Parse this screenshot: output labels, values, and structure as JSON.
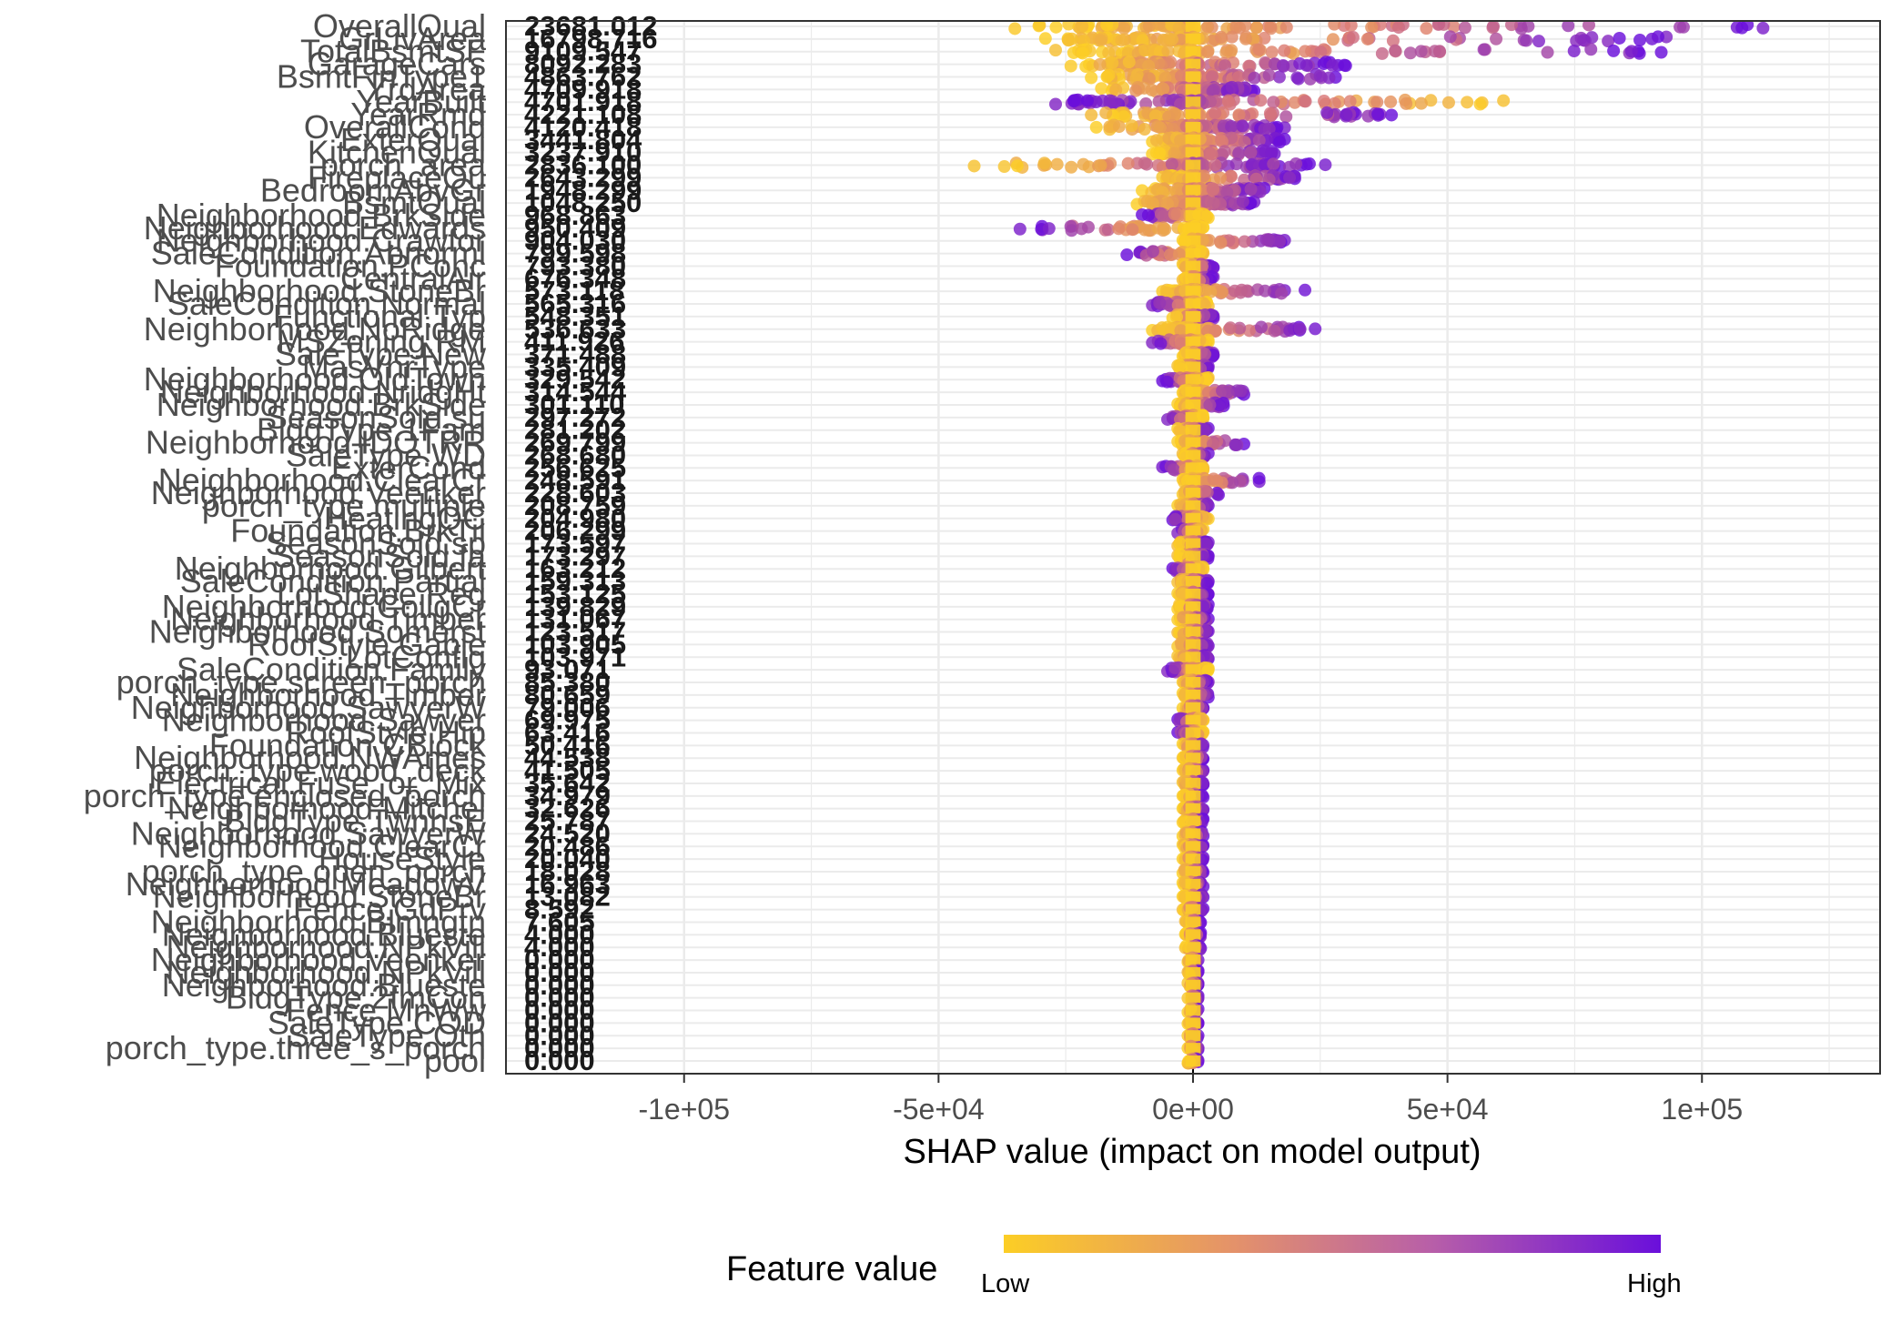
{
  "colors": {
    "low": "#fcce25",
    "mid": "#db7a76",
    "high": "#6a0fdb",
    "grid": "#ebebeb",
    "zero_line": "#000000"
  },
  "chart_data": {
    "type": "scatter",
    "subtype": "shap-summary-beeswarm",
    "title": "",
    "xlabel": "SHAP value (impact on model output)",
    "ylabel": "",
    "xlim": [
      -135000,
      135000
    ],
    "x_ticks": [
      -100000,
      -50000,
      0,
      50000,
      100000
    ],
    "x_tick_labels": [
      "-1e+05",
      "-5e+04",
      "0e+00",
      "5e+04",
      "1e+05"
    ],
    "grid": true,
    "legend": {
      "title": "Feature value",
      "low_label": "Low",
      "high_label": "High",
      "placement": "bottom"
    },
    "features": [
      {
        "name": "OverallQual",
        "mean_abs": "23681.012",
        "lo": -35000,
        "hi": 112000,
        "skew": "pos"
      },
      {
        "name": "GrLivArea",
        "mean_abs": "16798.716",
        "lo": -29000,
        "hi": 93000,
        "skew": "pos"
      },
      {
        "name": "TotalBsmtSF",
        "mean_abs": "9109.547",
        "lo": -27000,
        "hi": 92000,
        "skew": "pos"
      },
      {
        "name": "GarageCars",
        "mean_abs": "8092.283",
        "lo": -24000,
        "hi": 30000,
        "skew": "pos"
      },
      {
        "name": "BsmtFinType1",
        "mean_abs": "4863.762",
        "lo": -20000,
        "hi": 28000,
        "skew": "pos"
      },
      {
        "name": "YrdArea",
        "mean_abs": "4709.918",
        "lo": -18000,
        "hi": 12000,
        "skew": "pos"
      },
      {
        "name": "YearBuilt",
        "mean_abs": "4701.918",
        "lo": -27000,
        "hi": 61000,
        "skew": "neg"
      },
      {
        "name": "YearRmd",
        "mean_abs": "4221.108",
        "lo": -20000,
        "hi": 39000,
        "skew": "pos"
      },
      {
        "name": "OverallCond",
        "mean_abs": "4120.418",
        "lo": -19000,
        "hi": 18000,
        "skew": "pos"
      },
      {
        "name": "ExterQual",
        "mean_abs": "3441.804",
        "lo": -8000,
        "hi": 18000,
        "skew": "pos"
      },
      {
        "name": "KitchenQual",
        "mean_abs": "3237.910",
        "lo": -8000,
        "hi": 16000,
        "skew": "pos"
      },
      {
        "name": "porch_area",
        "mean_abs": "2836.100",
        "lo": -43000,
        "hi": 26000,
        "skew": "pos"
      },
      {
        "name": "FireplaceQu",
        "mean_abs": "2643.299",
        "lo": -6000,
        "hi": 20000,
        "skew": "pos"
      },
      {
        "name": "BedroomAbvGr",
        "mean_abs": "1948.299",
        "lo": -10000,
        "hi": 14000,
        "skew": "pos"
      },
      {
        "name": "BsmtQual",
        "mean_abs": "1048.250",
        "lo": -11000,
        "hi": 12000,
        "skew": "pos"
      },
      {
        "name": "Neighborhood.BrkSide",
        "mean_abs": "968.863",
        "lo": -10000,
        "hi": 3000,
        "skew": "neg"
      },
      {
        "name": "Neighborhood.Edwards",
        "mean_abs": "950.409",
        "lo": -34000,
        "hi": 2000,
        "skew": "neg"
      },
      {
        "name": "Neighborhood.Crawfor",
        "mean_abs": "904.030",
        "lo": -2000,
        "hi": 18000,
        "skew": "pos"
      },
      {
        "name": "SaleCondition.Abnorml",
        "mean_abs": "799.598",
        "lo": -13000,
        "hi": 2000,
        "skew": "neg"
      },
      {
        "name": "Foundation.PConc",
        "mean_abs": "793.380",
        "lo": -2000,
        "hi": 4000,
        "skew": "pos"
      },
      {
        "name": "CentralAir",
        "mean_abs": "676.348",
        "lo": -2000,
        "hi": 4000,
        "skew": "pos"
      },
      {
        "name": "Neighborhood.StoneBr",
        "mean_abs": "573.118",
        "lo": -6000,
        "hi": 22000,
        "skew": "pos"
      },
      {
        "name": "SaleCondition.Normal",
        "mean_abs": "565.316",
        "lo": -8000,
        "hi": 3000,
        "skew": "neg"
      },
      {
        "name": "Functional.Typ",
        "mean_abs": "548.351",
        "lo": -4000,
        "hi": 4000,
        "skew": "pos"
      },
      {
        "name": "Neighborhood.NoRidge",
        "mean_abs": "536.633",
        "lo": -8000,
        "hi": 24000,
        "skew": "pos"
      },
      {
        "name": "MSZoning.RM",
        "mean_abs": "411.926",
        "lo": -8000,
        "hi": 3000,
        "skew": "neg"
      },
      {
        "name": "SaleType.New",
        "mean_abs": "371.488",
        "lo": -2000,
        "hi": 4000,
        "skew": "pos"
      },
      {
        "name": "MasVnrType",
        "mean_abs": "335.409",
        "lo": -3000,
        "hi": 3000,
        "skew": "pos"
      },
      {
        "name": "Neighborhood.OldTown",
        "mean_abs": "329.542",
        "lo": -6000,
        "hi": 3000,
        "skew": "neg"
      },
      {
        "name": "Neighborhood.NridgHt",
        "mean_abs": "314.544",
        "lo": -2000,
        "hi": 10000,
        "skew": "pos"
      },
      {
        "name": "Neighborhood.BrkSide",
        "mean_abs": "301.110",
        "lo": -3000,
        "hi": 6000,
        "skew": "pos"
      },
      {
        "name": "SeasonSold.su",
        "mean_abs": "297.272",
        "lo": -5000,
        "hi": 2000,
        "skew": "neg"
      },
      {
        "name": "BldgType.1Fam",
        "mean_abs": "281.202",
        "lo": -3000,
        "hi": 3000,
        "skew": "pos"
      },
      {
        "name": "Neighborhood.IDOTRR",
        "mean_abs": "269.799",
        "lo": -3000,
        "hi": 10000,
        "skew": "pos"
      },
      {
        "name": "SaleType.WD",
        "mean_abs": "268.680",
        "lo": -2000,
        "hi": 3000,
        "skew": "pos"
      },
      {
        "name": "ExterCond",
        "mean_abs": "256.625",
        "lo": -6000,
        "hi": 2000,
        "skew": "neg"
      },
      {
        "name": "Neighborhood.ClearCr",
        "mean_abs": "248.591",
        "lo": -2000,
        "hi": 13000,
        "skew": "pos"
      },
      {
        "name": "Neighborhood.Veenker",
        "mean_abs": "228.603",
        "lo": -2000,
        "hi": 5000,
        "skew": "pos"
      },
      {
        "name": "porch_type.multiple",
        "mean_abs": "208.759",
        "lo": -3000,
        "hi": 3000,
        "skew": "pos"
      },
      {
        "name": "HeatingQC",
        "mean_abs": "204.980",
        "lo": -4000,
        "hi": 3000,
        "skew": "neg"
      },
      {
        "name": "Foundation.BrkTil",
        "mean_abs": "206.299",
        "lo": -3000,
        "hi": 2000,
        "skew": "neg"
      },
      {
        "name": "SeasonSold.sp",
        "mean_abs": "173.597",
        "lo": -3000,
        "hi": 3000,
        "skew": "pos"
      },
      {
        "name": "SeasonSold.fa",
        "mean_abs": "173.297",
        "lo": -3000,
        "hi": 3000,
        "skew": "pos"
      },
      {
        "name": "Neighborhood.Gilbert",
        "mean_abs": "163.212",
        "lo": -4000,
        "hi": 2000,
        "skew": "neg"
      },
      {
        "name": "SaleCondition.Partial",
        "mean_abs": "159.313",
        "lo": -3000,
        "hi": 3000,
        "skew": "pos"
      },
      {
        "name": "LotShape.Reg",
        "mean_abs": "153.125",
        "lo": -3000,
        "hi": 3000,
        "skew": "pos"
      },
      {
        "name": "Neighborhood.CollgCr",
        "mean_abs": "139.829",
        "lo": -3000,
        "hi": 3000,
        "skew": "pos"
      },
      {
        "name": "Neighborhood.Timber",
        "mean_abs": "131.067",
        "lo": -3000,
        "hi": 3000,
        "skew": "pos"
      },
      {
        "name": "Neighborhood.Somerst",
        "mean_abs": "123.517",
        "lo": -3000,
        "hi": 3000,
        "skew": "pos"
      },
      {
        "name": "RoofStyle.Gable",
        "mean_abs": "103.905",
        "lo": -3000,
        "hi": 3000,
        "skew": "pos"
      },
      {
        "name": "LotConfig",
        "mean_abs": "103.971",
        "lo": -3000,
        "hi": 3000,
        "skew": "pos"
      },
      {
        "name": "SaleCondition.Family",
        "mean_abs": "93.071",
        "lo": -5000,
        "hi": 3000,
        "skew": "neg"
      },
      {
        "name": "porch_type.screen_porch",
        "mean_abs": "85.380",
        "lo": -2000,
        "hi": 3000,
        "skew": "pos"
      },
      {
        "name": "Neighborhood.Timber",
        "mean_abs": "80.659",
        "lo": -2000,
        "hi": 3000,
        "skew": "pos"
      },
      {
        "name": "Neighborhood.SawyerW",
        "mean_abs": "79.006",
        "lo": -2000,
        "hi": 2000,
        "skew": "pos"
      },
      {
        "name": "Neighborhood.Sawyer",
        "mean_abs": "69.975",
        "lo": -3000,
        "hi": 2000,
        "skew": "neg"
      },
      {
        "name": "RoofStyle.Hip",
        "mean_abs": "63.416",
        "lo": -3000,
        "hi": 2000,
        "skew": "neg"
      },
      {
        "name": "Foundation.CBlock",
        "mean_abs": "50.416",
        "lo": -2000,
        "hi": 2000,
        "skew": "pos"
      },
      {
        "name": "Neighborhood.NWAmes",
        "mean_abs": "44.538",
        "lo": -2000,
        "hi": 2000,
        "skew": "pos"
      },
      {
        "name": "porch_type.wood_deck",
        "mean_abs": "41.505",
        "lo": -2000,
        "hi": 2000,
        "skew": "pos"
      },
      {
        "name": "Electrical.Fuse_or_Mix",
        "mean_abs": "35.642",
        "lo": -2000,
        "hi": 2000,
        "skew": "pos"
      },
      {
        "name": "porch_type.enclosed_porch",
        "mean_abs": "34.979",
        "lo": -2000,
        "hi": 2000,
        "skew": "pos"
      },
      {
        "name": "Neighborhood.Mitchel",
        "mean_abs": "32.626",
        "lo": -2000,
        "hi": 2000,
        "skew": "pos"
      },
      {
        "name": "BldgType.TwnhsE",
        "mean_abs": "25.787",
        "lo": -2000,
        "hi": 2000,
        "skew": "pos"
      },
      {
        "name": "Neighborhood.SawyerW",
        "mean_abs": "24.520",
        "lo": -2000,
        "hi": 2000,
        "skew": "pos"
      },
      {
        "name": "Neighborhood.ClearCr",
        "mean_abs": "20.486",
        "lo": -2000,
        "hi": 2000,
        "skew": "pos"
      },
      {
        "name": "HouseStyle",
        "mean_abs": "20.040",
        "lo": -2000,
        "hi": 2000,
        "skew": "pos"
      },
      {
        "name": "porch_type.open_porch",
        "mean_abs": "18.028",
        "lo": -2000,
        "hi": 2000,
        "skew": "pos"
      },
      {
        "name": "Neighborhood.MeadowV",
        "mean_abs": "16.963",
        "lo": -2000,
        "hi": 2000,
        "skew": "pos"
      },
      {
        "name": "Neighborhood.StoneBr",
        "mean_abs": "13.082",
        "lo": -2000,
        "hi": 2000,
        "skew": "pos"
      },
      {
        "name": "Fence.GdPrv",
        "mean_abs": "8.592",
        "lo": -2000,
        "hi": 2000,
        "skew": "pos"
      },
      {
        "name": "Neighborhood.Blmngtn",
        "mean_abs": "7.605",
        "lo": -1500,
        "hi": 1500,
        "skew": "pos"
      },
      {
        "name": "Neighborhood.Blueste",
        "mean_abs": "4.000",
        "lo": -1500,
        "hi": 1500,
        "skew": "pos"
      },
      {
        "name": "Neighborhood.NPkVill",
        "mean_abs": "4.000",
        "lo": -1500,
        "hi": 1500,
        "skew": "pos"
      },
      {
        "name": "Neighborhood.Veenker",
        "mean_abs": "0.000",
        "lo": -1000,
        "hi": 1000,
        "skew": "pos"
      },
      {
        "name": "Neighborhood.NPkVill",
        "mean_abs": "0.000",
        "lo": -1000,
        "hi": 1000,
        "skew": "pos"
      },
      {
        "name": "Neighborhood.Blueste",
        "mean_abs": "0.000",
        "lo": -1000,
        "hi": 1000,
        "skew": "pos"
      },
      {
        "name": "BldgType.2fmCon",
        "mean_abs": "0.000",
        "lo": -1000,
        "hi": 1000,
        "skew": "pos"
      },
      {
        "name": "Fence.MnWw",
        "mean_abs": "0.000",
        "lo": -1000,
        "hi": 1000,
        "skew": "pos"
      },
      {
        "name": "SaleType.COD",
        "mean_abs": "0.000",
        "lo": -1000,
        "hi": 1000,
        "skew": "pos"
      },
      {
        "name": "SaleType.Oth",
        "mean_abs": "0.000",
        "lo": -1000,
        "hi": 1000,
        "skew": "pos"
      },
      {
        "name": "porch_type.three_s_porch",
        "mean_abs": "0.000",
        "lo": -1000,
        "hi": 1000,
        "skew": "pos"
      },
      {
        "name": "pool",
        "mean_abs": "0.000",
        "lo": -1000,
        "hi": 1000,
        "skew": "pos"
      }
    ]
  }
}
